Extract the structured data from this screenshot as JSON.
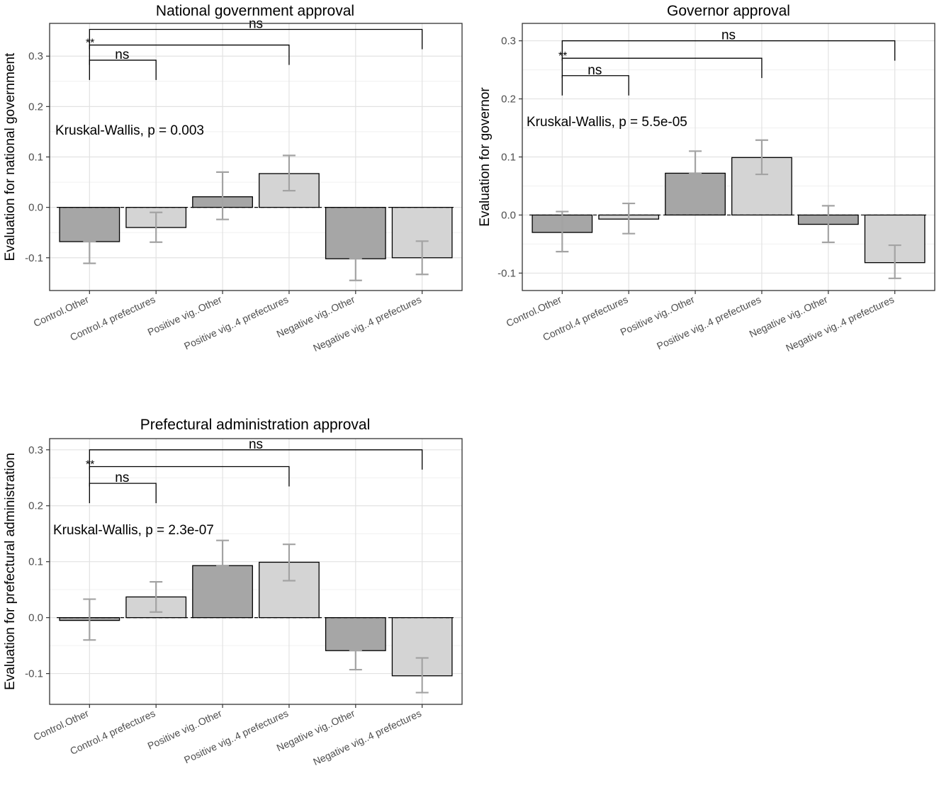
{
  "chart_data": [
    {
      "type": "bar",
      "title": "National government approval",
      "xlabel": "",
      "ylabel": "Evaluation for national government",
      "ylim": [
        -0.165,
        0.365
      ],
      "yticks": [
        -0.1,
        0.0,
        0.1,
        0.2,
        0.3
      ],
      "ytick_labels": [
        "-0.1",
        "0.0",
        "0.1",
        "0.2",
        "0.3"
      ],
      "grid": true,
      "categories": [
        "Control.Other",
        "Control.4 prefectures",
        "Positive vig..Other",
        "Positive vig..4 prefectures",
        "Negative vig..Other",
        "Negative vig..4 prefectures"
      ],
      "values": [
        -0.068,
        -0.04,
        0.021,
        0.067,
        -0.102,
        -0.1
      ],
      "error_low": [
        -0.111,
        -0.069,
        -0.024,
        0.033,
        -0.145,
        -0.133
      ],
      "error_high": [
        -0.068,
        -0.01,
        0.07,
        0.103,
        -0.102,
        -0.067
      ],
      "bar_colors": [
        "#a6a6a6",
        "#d4d4d4",
        "#a6a6a6",
        "#d4d4d4",
        "#a6a6a6",
        "#d4d4d4"
      ],
      "annotation": "Kruskal-Wallis, p = 0.003",
      "comparisons": [
        {
          "from": 0,
          "to": 5,
          "label": "ns",
          "level": 0.353
        },
        {
          "from": 0,
          "to": 3,
          "label": "**",
          "level": 0.322
        },
        {
          "from": 0,
          "to": 1,
          "label": "ns",
          "level": 0.292
        }
      ]
    },
    {
      "type": "bar",
      "title": "Governor approval",
      "xlabel": "",
      "ylabel": "Evaluation for governor",
      "ylim": [
        -0.13,
        0.33
      ],
      "yticks": [
        -0.1,
        0.0,
        0.1,
        0.2,
        0.3
      ],
      "ytick_labels": [
        "-0.1",
        "0.0",
        "0.1",
        "0.2",
        "0.3"
      ],
      "grid": true,
      "categories": [
        "Control.Other",
        "Control.4 prefectures",
        "Positive vig..Other",
        "Positive vig..4 prefectures",
        "Negative vig..Other",
        "Negative vig..4 prefectures"
      ],
      "values": [
        -0.03,
        -0.007,
        0.072,
        0.099,
        -0.016,
        -0.082
      ],
      "error_low": [
        -0.063,
        -0.032,
        0.072,
        0.07,
        -0.047,
        -0.109
      ],
      "error_high": [
        0.006,
        0.02,
        0.11,
        0.129,
        0.016,
        -0.052
      ],
      "bar_colors": [
        "#a6a6a6",
        "#d4d4d4",
        "#a6a6a6",
        "#d4d4d4",
        "#a6a6a6",
        "#d4d4d4"
      ],
      "annotation": "Kruskal-Wallis, p = 5.5e-05",
      "comparisons": [
        {
          "from": 0,
          "to": 5,
          "label": "ns",
          "level": 0.3
        },
        {
          "from": 0,
          "to": 3,
          "label": "**",
          "level": 0.27
        },
        {
          "from": 0,
          "to": 1,
          "label": "ns",
          "level": 0.24
        }
      ]
    },
    {
      "type": "bar",
      "title": "Prefectural administration approval",
      "xlabel": "",
      "ylabel": "Evaluation for prefectural administration",
      "ylim": [
        -0.155,
        0.32
      ],
      "yticks": [
        -0.1,
        0.0,
        0.1,
        0.2,
        0.3
      ],
      "ytick_labels": [
        "-0.1",
        "0.0",
        "0.1",
        "0.2",
        "0.3"
      ],
      "grid": true,
      "categories": [
        "Control.Other",
        "Control.4 prefectures",
        "Positive vig..Other",
        "Positive vig..4 prefectures",
        "Negative vig..Other",
        "Negative vig..4 prefectures"
      ],
      "values": [
        -0.005,
        0.037,
        0.093,
        0.099,
        -0.059,
        -0.104
      ],
      "error_low": [
        -0.04,
        0.01,
        0.093,
        0.066,
        -0.093,
        -0.134
      ],
      "error_high": [
        0.033,
        0.064,
        0.138,
        0.131,
        -0.059,
        -0.072
      ],
      "bar_colors": [
        "#a6a6a6",
        "#d4d4d4",
        "#a6a6a6",
        "#d4d4d4",
        "#a6a6a6",
        "#d4d4d4"
      ],
      "annotation": "Kruskal-Wallis, p = 2.3e-07",
      "comparisons": [
        {
          "from": 0,
          "to": 5,
          "label": "ns",
          "level": 0.3
        },
        {
          "from": 0,
          "to": 3,
          "label": "**",
          "level": 0.27
        },
        {
          "from": 0,
          "to": 1,
          "label": "ns",
          "level": 0.24
        }
      ]
    }
  ]
}
